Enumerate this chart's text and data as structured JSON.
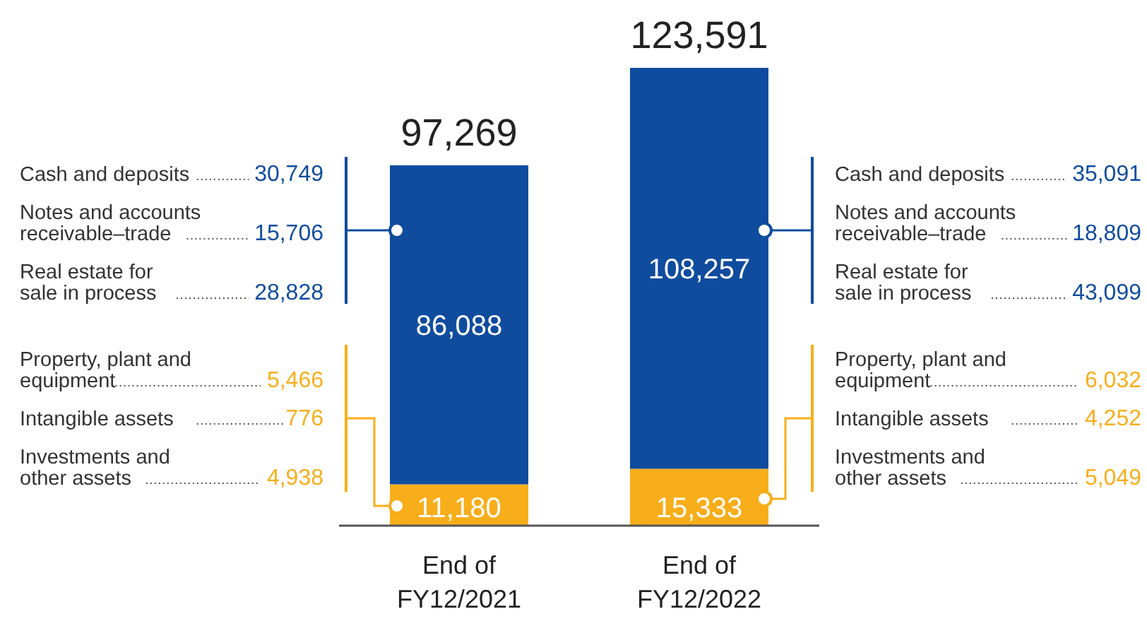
{
  "chart_data": {
    "type": "bar",
    "stacked": true,
    "categories": [
      "End of FY12/2021",
      "End of FY12/2022"
    ],
    "series": [
      {
        "color": "#f8ae1a",
        "values": [
          11180,
          15333
        ],
        "value_labels": [
          "11,180",
          "15,333"
        ]
      },
      {
        "color": "#0f4c9e",
        "values": [
          86088,
          108257
        ],
        "value_labels": [
          "86,088",
          "108,257"
        ]
      }
    ],
    "totals": [
      "97,269",
      "123,591"
    ],
    "annotations": [
      "Cash and deposits 30,749",
      "Notes and accounts receivable–trade 15,706",
      "Real estate for sale in process 28,828",
      "Property, plant and equipment 5,466",
      "Intangible assets 776",
      "Investments and other assets 4,938",
      "Cash and deposits 35,091",
      "Notes and accounts receivable–trade 18,809",
      "Real estate for sale in process 43,099",
      "Property, plant and equipment 6,032",
      "Intangible assets 4,252",
      "Investments and other assets 5,049"
    ]
  }
}
